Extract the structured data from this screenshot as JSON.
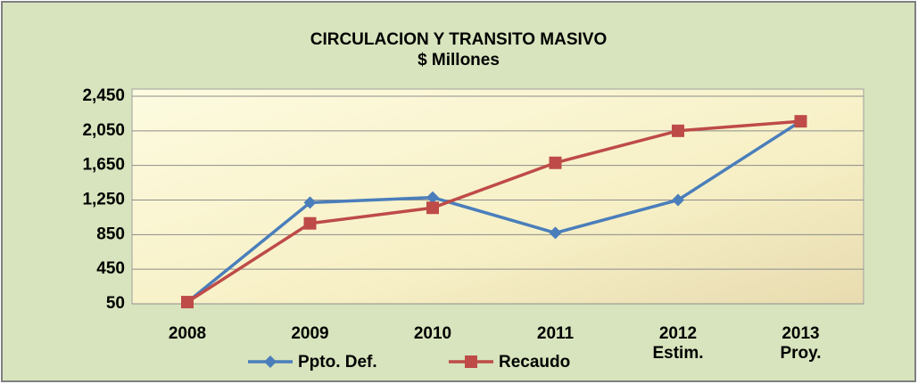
{
  "chart_data": {
    "type": "line",
    "title": "CIRCULACION Y TRANSITO MASIVO",
    "subtitle": "$ Millones",
    "categories": [
      "2008",
      "2009",
      "2010",
      "2011",
      "2012 Estim.",
      "2013 Proy."
    ],
    "series": [
      {
        "name": "Ppto. Def.",
        "color": "#4a7ebb",
        "marker": "diamond",
        "values": [
          70,
          1220,
          1280,
          870,
          1250,
          2160
        ]
      },
      {
        "name": "Recaudo",
        "color": "#be4b48",
        "marker": "square",
        "values": [
          70,
          980,
          1160,
          1680,
          2050,
          2160
        ]
      }
    ],
    "ylim": [
      50,
      2450
    ],
    "yticks": [
      50,
      450,
      850,
      {
        "value": 1250,
        "label": "1,250"
      },
      {
        "value": 1650,
        "label": "1,650"
      },
      {
        "value": 2050,
        "label": "2,050"
      },
      {
        "value": 2450,
        "label": "2,450"
      }
    ],
    "grid": true,
    "legend": "bottom"
  }
}
